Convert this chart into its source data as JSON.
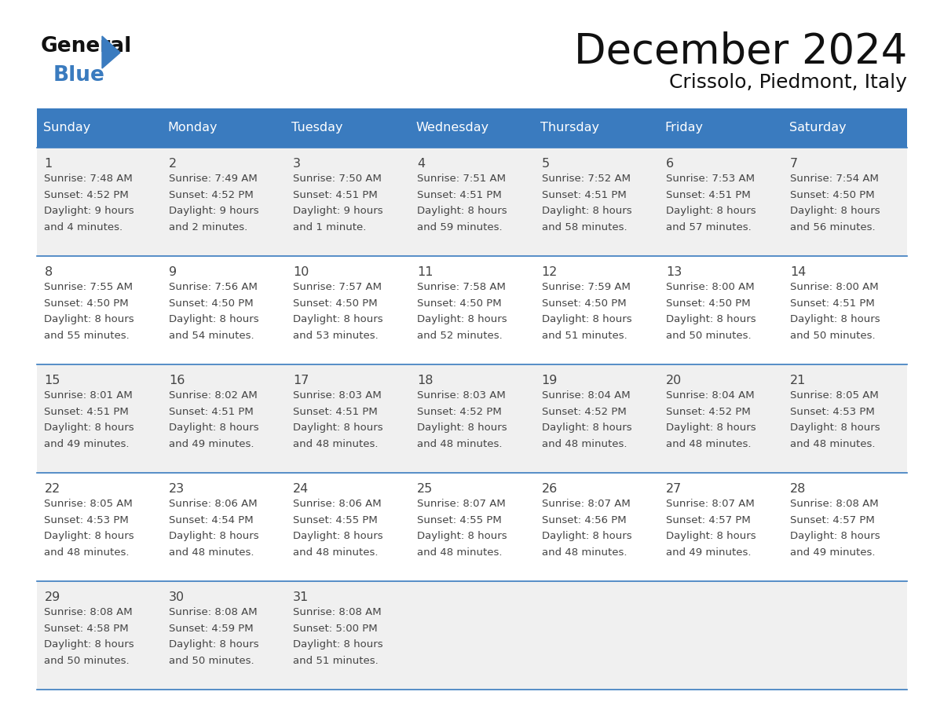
{
  "title": "December 2024",
  "subtitle": "Crissolo, Piedmont, Italy",
  "days_of_week": [
    "Sunday",
    "Monday",
    "Tuesday",
    "Wednesday",
    "Thursday",
    "Friday",
    "Saturday"
  ],
  "header_bg": "#3a7bbf",
  "header_text": "#ffffff",
  "row_bg_odd": "#f0f0f0",
  "row_bg_even": "#ffffff",
  "border_color": "#3a7bbf",
  "text_color": "#444444",
  "calendar_data": [
    [
      {
        "day": "1",
        "sunrise": "7:48 AM",
        "sunset": "4:52 PM",
        "dl1": "Daylight: 9 hours",
        "dl2": "and 4 minutes."
      },
      {
        "day": "2",
        "sunrise": "7:49 AM",
        "sunset": "4:52 PM",
        "dl1": "Daylight: 9 hours",
        "dl2": "and 2 minutes."
      },
      {
        "day": "3",
        "sunrise": "7:50 AM",
        "sunset": "4:51 PM",
        "dl1": "Daylight: 9 hours",
        "dl2": "and 1 minute."
      },
      {
        "day": "4",
        "sunrise": "7:51 AM",
        "sunset": "4:51 PM",
        "dl1": "Daylight: 8 hours",
        "dl2": "and 59 minutes."
      },
      {
        "day": "5",
        "sunrise": "7:52 AM",
        "sunset": "4:51 PM",
        "dl1": "Daylight: 8 hours",
        "dl2": "and 58 minutes."
      },
      {
        "day": "6",
        "sunrise": "7:53 AM",
        "sunset": "4:51 PM",
        "dl1": "Daylight: 8 hours",
        "dl2": "and 57 minutes."
      },
      {
        "day": "7",
        "sunrise": "7:54 AM",
        "sunset": "4:50 PM",
        "dl1": "Daylight: 8 hours",
        "dl2": "and 56 minutes."
      }
    ],
    [
      {
        "day": "8",
        "sunrise": "7:55 AM",
        "sunset": "4:50 PM",
        "dl1": "Daylight: 8 hours",
        "dl2": "and 55 minutes."
      },
      {
        "day": "9",
        "sunrise": "7:56 AM",
        "sunset": "4:50 PM",
        "dl1": "Daylight: 8 hours",
        "dl2": "and 54 minutes."
      },
      {
        "day": "10",
        "sunrise": "7:57 AM",
        "sunset": "4:50 PM",
        "dl1": "Daylight: 8 hours",
        "dl2": "and 53 minutes."
      },
      {
        "day": "11",
        "sunrise": "7:58 AM",
        "sunset": "4:50 PM",
        "dl1": "Daylight: 8 hours",
        "dl2": "and 52 minutes."
      },
      {
        "day": "12",
        "sunrise": "7:59 AM",
        "sunset": "4:50 PM",
        "dl1": "Daylight: 8 hours",
        "dl2": "and 51 minutes."
      },
      {
        "day": "13",
        "sunrise": "8:00 AM",
        "sunset": "4:50 PM",
        "dl1": "Daylight: 8 hours",
        "dl2": "and 50 minutes."
      },
      {
        "day": "14",
        "sunrise": "8:00 AM",
        "sunset": "4:51 PM",
        "dl1": "Daylight: 8 hours",
        "dl2": "and 50 minutes."
      }
    ],
    [
      {
        "day": "15",
        "sunrise": "8:01 AM",
        "sunset": "4:51 PM",
        "dl1": "Daylight: 8 hours",
        "dl2": "and 49 minutes."
      },
      {
        "day": "16",
        "sunrise": "8:02 AM",
        "sunset": "4:51 PM",
        "dl1": "Daylight: 8 hours",
        "dl2": "and 49 minutes."
      },
      {
        "day": "17",
        "sunrise": "8:03 AM",
        "sunset": "4:51 PM",
        "dl1": "Daylight: 8 hours",
        "dl2": "and 48 minutes."
      },
      {
        "day": "18",
        "sunrise": "8:03 AM",
        "sunset": "4:52 PM",
        "dl1": "Daylight: 8 hours",
        "dl2": "and 48 minutes."
      },
      {
        "day": "19",
        "sunrise": "8:04 AM",
        "sunset": "4:52 PM",
        "dl1": "Daylight: 8 hours",
        "dl2": "and 48 minutes."
      },
      {
        "day": "20",
        "sunrise": "8:04 AM",
        "sunset": "4:52 PM",
        "dl1": "Daylight: 8 hours",
        "dl2": "and 48 minutes."
      },
      {
        "day": "21",
        "sunrise": "8:05 AM",
        "sunset": "4:53 PM",
        "dl1": "Daylight: 8 hours",
        "dl2": "and 48 minutes."
      }
    ],
    [
      {
        "day": "22",
        "sunrise": "8:05 AM",
        "sunset": "4:53 PM",
        "dl1": "Daylight: 8 hours",
        "dl2": "and 48 minutes."
      },
      {
        "day": "23",
        "sunrise": "8:06 AM",
        "sunset": "4:54 PM",
        "dl1": "Daylight: 8 hours",
        "dl2": "and 48 minutes."
      },
      {
        "day": "24",
        "sunrise": "8:06 AM",
        "sunset": "4:55 PM",
        "dl1": "Daylight: 8 hours",
        "dl2": "and 48 minutes."
      },
      {
        "day": "25",
        "sunrise": "8:07 AM",
        "sunset": "4:55 PM",
        "dl1": "Daylight: 8 hours",
        "dl2": "and 48 minutes."
      },
      {
        "day": "26",
        "sunrise": "8:07 AM",
        "sunset": "4:56 PM",
        "dl1": "Daylight: 8 hours",
        "dl2": "and 48 minutes."
      },
      {
        "day": "27",
        "sunrise": "8:07 AM",
        "sunset": "4:57 PM",
        "dl1": "Daylight: 8 hours",
        "dl2": "and 49 minutes."
      },
      {
        "day": "28",
        "sunrise": "8:08 AM",
        "sunset": "4:57 PM",
        "dl1": "Daylight: 8 hours",
        "dl2": "and 49 minutes."
      }
    ],
    [
      {
        "day": "29",
        "sunrise": "8:08 AM",
        "sunset": "4:58 PM",
        "dl1": "Daylight: 8 hours",
        "dl2": "and 50 minutes."
      },
      {
        "day": "30",
        "sunrise": "8:08 AM",
        "sunset": "4:59 PM",
        "dl1": "Daylight: 8 hours",
        "dl2": "and 50 minutes."
      },
      {
        "day": "31",
        "sunrise": "8:08 AM",
        "sunset": "5:00 PM",
        "dl1": "Daylight: 8 hours",
        "dl2": "and 51 minutes."
      },
      null,
      null,
      null,
      null
    ]
  ]
}
